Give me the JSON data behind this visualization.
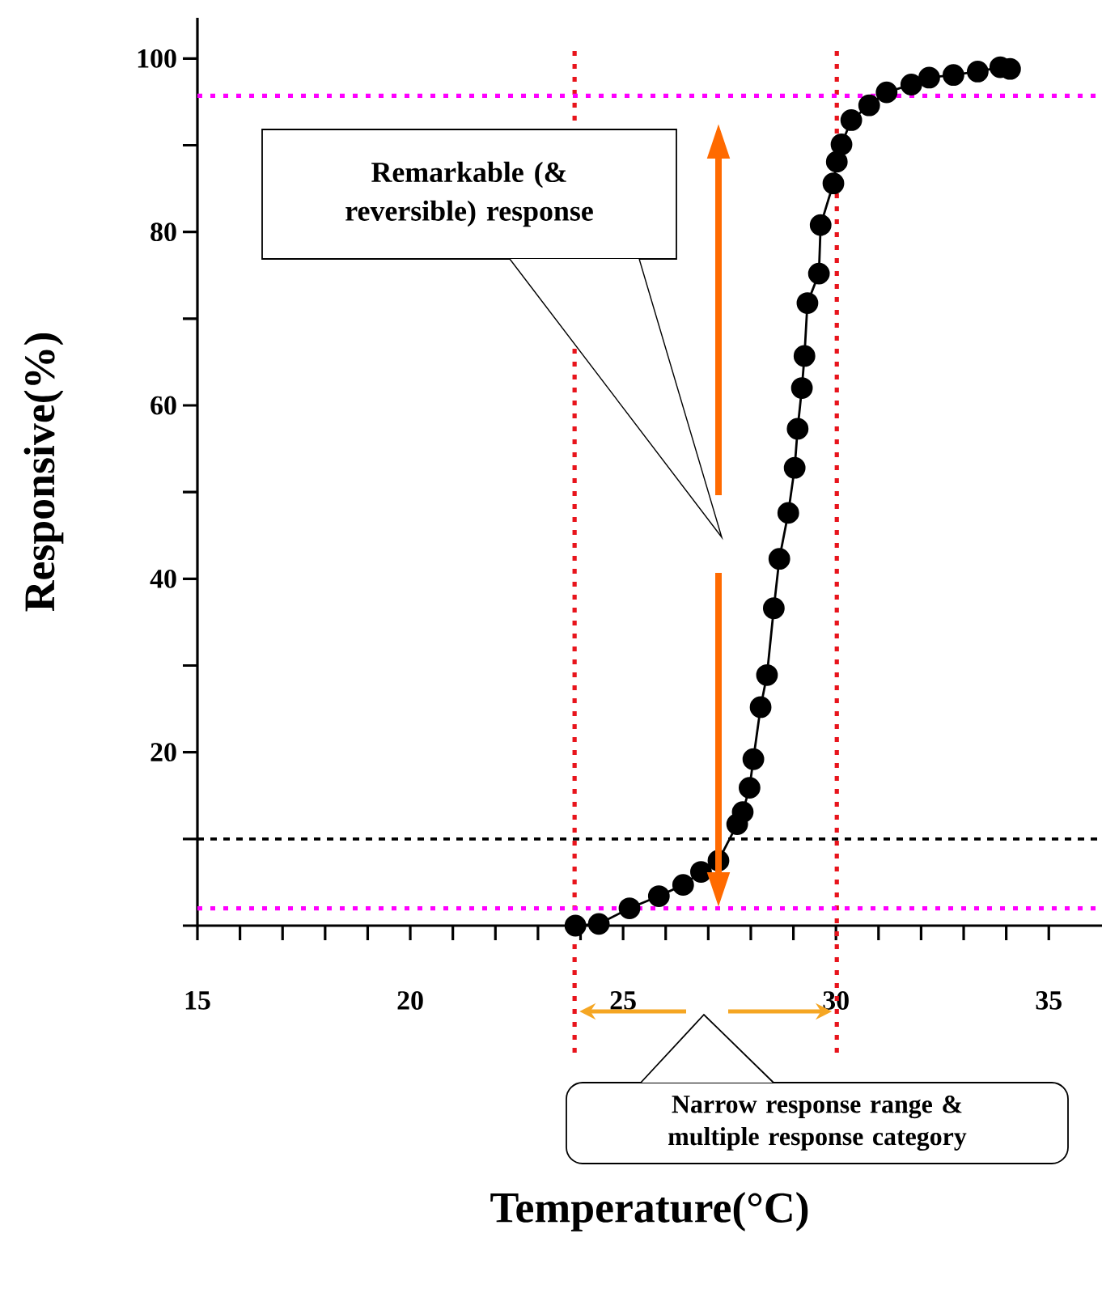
{
  "chart_data": {
    "type": "line",
    "xlabel": "Temperature(°C)",
    "ylabel": "Responsive(%)",
    "x": [
      23.88,
      24.43,
      25.15,
      25.84,
      26.41,
      26.83,
      27.24,
      27.68,
      27.81,
      27.97,
      28.06,
      28.23,
      28.38,
      28.54,
      28.67,
      28.88,
      29.03,
      29.1,
      29.2,
      29.26,
      29.33,
      29.6,
      29.64,
      29.94,
      30.02,
      30.13,
      30.36,
      30.78,
      31.19,
      31.77,
      32.19,
      32.76,
      33.33,
      33.86,
      34.09
    ],
    "series": [
      {
        "color": "#000000",
        "values": [
          0,
          0.2,
          2.0,
          3.4,
          4.7,
          6.2,
          7.5,
          11.7,
          13.1,
          15.9,
          19.2,
          25.2,
          28.9,
          36.6,
          42.3,
          47.6,
          52.8,
          57.3,
          62.0,
          65.7,
          71.8,
          75.2,
          80.8,
          85.6,
          88.1,
          90.1,
          92.9,
          94.6,
          96.1,
          97.0,
          97.8,
          98.1,
          98.5,
          99.0,
          98.8
        ]
      }
    ],
    "marker": "circle",
    "line_style": "solid",
    "xlim": [
      15,
      36.25
    ],
    "ylim": [
      0,
      104.7
    ],
    "xticks": [
      15,
      20,
      25,
      30,
      35
    ],
    "yticks": [
      {
        "value": 0,
        "label": null
      },
      20,
      40,
      60,
      80,
      100
    ],
    "ref_lines": [
      {
        "axis": "x",
        "value": 23.86,
        "color": "#e8141c",
        "line_style": "dotted"
      },
      {
        "axis": "x",
        "value": 30.02,
        "color": "#e8141c",
        "line_style": "dotted"
      },
      {
        "axis": "y",
        "value": 95.7,
        "color": "#ff00ff",
        "line_style": "dotted"
      },
      {
        "axis": "y",
        "value": 2,
        "color": "#ff00ff",
        "line_style": "dotted"
      },
      {
        "axis": "y",
        "value": 10,
        "color": "#000000",
        "line_style": "dashed"
      }
    ],
    "annotations": [
      "Remarkable (& reversible) response",
      "Narrow response range & multiple response category"
    ]
  }
}
